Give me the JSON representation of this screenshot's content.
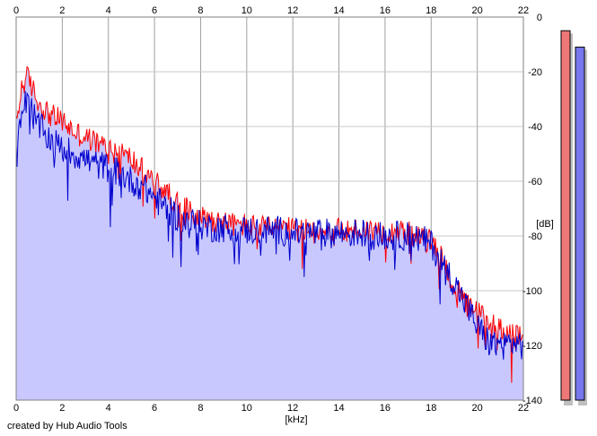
{
  "chart_data": {
    "type": "line",
    "xlabel": "[kHz]",
    "ylabel": "[dB]",
    "xlim": [
      0,
      22
    ],
    "ylim": [
      -140,
      0
    ],
    "x_ticks": [
      0,
      2,
      4,
      6,
      8,
      10,
      12,
      14,
      16,
      18,
      20,
      22
    ],
    "y_ticks": [
      0,
      -20,
      -40,
      -60,
      -80,
      -100,
      -120,
      -140
    ],
    "x_tick_labels": [
      "0",
      "2",
      "4",
      "6",
      "8",
      "10",
      "12",
      "14",
      "16",
      "18",
      "20",
      "22"
    ],
    "y_tick_labels": [
      "0",
      "-20",
      "-40",
      "-60",
      "-80",
      "-100",
      "-120",
      "-140"
    ],
    "grid": true,
    "x_axis_labels_top_and_bottom": true,
    "series": [
      {
        "color": "#ff0000",
        "x": [
          0,
          0.25,
          0.5,
          0.75,
          1,
          1.5,
          2,
          2.5,
          3,
          3.5,
          4,
          4.5,
          5,
          5.5,
          6,
          6.5,
          7,
          7.5,
          8,
          8.5,
          9,
          9.5,
          10,
          10.5,
          11,
          11.5,
          12,
          12.5,
          13,
          13.5,
          14,
          14.5,
          15,
          15.5,
          16,
          16.5,
          17,
          17.5,
          18,
          18.5,
          19,
          19.5,
          20,
          20.5,
          21,
          21.5,
          22
        ],
        "values": [
          -40,
          -25,
          -22,
          -27,
          -32,
          -36,
          -38,
          -42,
          -44,
          -46,
          -48,
          -49,
          -52,
          -56,
          -60,
          -64,
          -68,
          -71,
          -73,
          -74,
          -75,
          -76,
          -76,
          -77,
          -77,
          -77,
          -78,
          -78,
          -78,
          -78,
          -78,
          -78,
          -78,
          -78,
          -78,
          -78,
          -79,
          -81,
          -82,
          -88,
          -99,
          -105,
          -108,
          -111,
          -114,
          -116,
          -118
        ]
      },
      {
        "color": "#0000cc",
        "x": [
          0,
          0.25,
          0.5,
          0.75,
          1,
          1.5,
          2,
          2.5,
          3,
          3.5,
          4,
          4.5,
          5,
          5.5,
          6,
          6.5,
          7,
          7.5,
          8,
          8.5,
          9,
          9.5,
          10,
          10.5,
          11,
          11.5,
          12,
          12.5,
          13,
          13.5,
          14,
          14.5,
          15,
          15.5,
          16,
          16.5,
          17,
          17.5,
          18,
          18.5,
          19,
          19.5,
          20,
          20.5,
          21,
          21.5,
          22
        ],
        "values": [
          -45,
          -34,
          -30,
          -36,
          -40,
          -45,
          -48,
          -50,
          -52,
          -54,
          -55,
          -57,
          -60,
          -62,
          -66,
          -70,
          -73,
          -75,
          -76,
          -77,
          -77,
          -78,
          -78,
          -78,
          -78,
          -78,
          -79,
          -79,
          -79,
          -79,
          -79,
          -79,
          -79,
          -80,
          -80,
          -80,
          -80,
          -81,
          -83,
          -90,
          -97,
          -105,
          -113,
          -119,
          -120,
          -119,
          -120
        ]
      }
    ],
    "level_meters": [
      {
        "color": "#ee7777",
        "value_db": -5
      },
      {
        "color": "#7777ee",
        "value_db": -11
      }
    ],
    "footer": "created by Hub Audio Tools"
  }
}
